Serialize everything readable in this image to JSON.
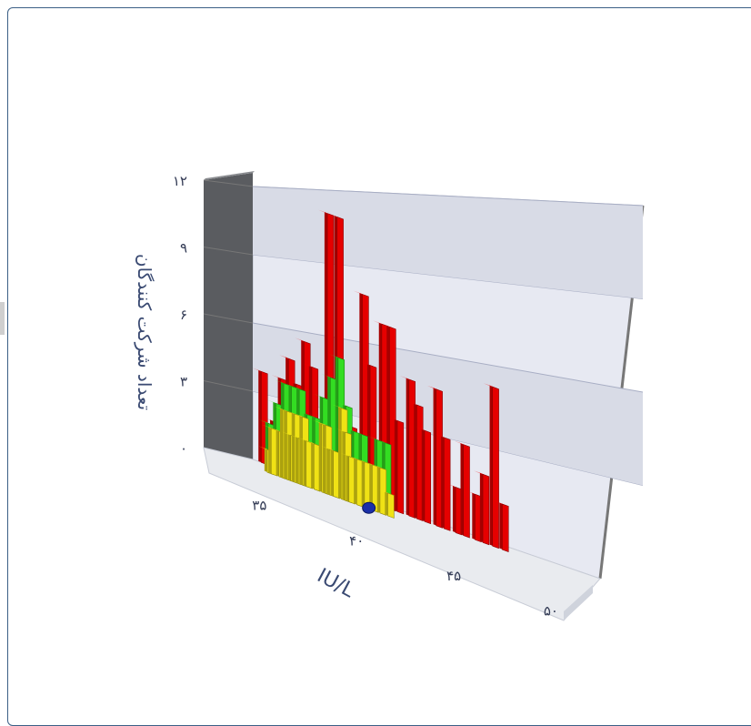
{
  "chart_data": {
    "type": "bar",
    "ylabel": "تعداد شرکت کنندگان",
    "xlabel": "IU/L",
    "yticks": [
      "۰",
      "۳",
      "۶",
      "۹",
      "۱۲"
    ],
    "ytick_values": [
      0,
      3,
      6,
      9,
      12
    ],
    "xticks": [
      "۳۵",
      "۴۰",
      "۴۵",
      "۵۰"
    ],
    "xtick_values": [
      35,
      40,
      45,
      50
    ],
    "ylim": [
      0,
      12
    ],
    "xlim": [
      34,
      51.5
    ],
    "grid": true,
    "series": [
      {
        "color": "#e60000",
        "values": [
          [
            34.6,
            4
          ],
          [
            35.2,
            2
          ],
          [
            35.6,
            4
          ],
          [
            36.0,
            5
          ],
          [
            36.4,
            4
          ],
          [
            36.8,
            6
          ],
          [
            37.2,
            5
          ],
          [
            38.0,
            12
          ],
          [
            38.5,
            12
          ],
          [
            39.2,
            3
          ],
          [
            39.8,
            9
          ],
          [
            40.2,
            6
          ],
          [
            40.8,
            8
          ],
          [
            41.2,
            8
          ],
          [
            41.6,
            4
          ],
          [
            42.2,
            6
          ],
          [
            42.6,
            5
          ],
          [
            43.0,
            4
          ],
          [
            43.6,
            6
          ],
          [
            44.0,
            4
          ],
          [
            44.6,
            2
          ],
          [
            45.0,
            4
          ],
          [
            45.6,
            2
          ],
          [
            46.0,
            3
          ],
          [
            46.5,
            7
          ],
          [
            47.0,
            2
          ]
        ]
      },
      {
        "color": "#33dd22",
        "values": [
          [
            34.8,
            2
          ],
          [
            35.2,
            3
          ],
          [
            35.6,
            4
          ],
          [
            36.0,
            4
          ],
          [
            36.4,
            4
          ],
          [
            36.8,
            3
          ],
          [
            37.2,
            3
          ],
          [
            37.6,
            4
          ],
          [
            38.0,
            5
          ],
          [
            38.4,
            6
          ],
          [
            38.8,
            4
          ],
          [
            39.2,
            3
          ],
          [
            39.6,
            3
          ],
          [
            40.4,
            3
          ],
          [
            40.8,
            3
          ]
        ]
      },
      {
        "color": "#f0e215",
        "values": [
          [
            34.6,
            1
          ],
          [
            34.8,
            2
          ],
          [
            35.2,
            2
          ],
          [
            35.4,
            3
          ],
          [
            35.6,
            3
          ],
          [
            35.8,
            2
          ],
          [
            36.0,
            3
          ],
          [
            36.2,
            2
          ],
          [
            36.4,
            3
          ],
          [
            36.6,
            2
          ],
          [
            37.0,
            2
          ],
          [
            37.4,
            3
          ],
          [
            37.6,
            3
          ],
          [
            37.8,
            2
          ],
          [
            38.0,
            2
          ],
          [
            38.4,
            4
          ],
          [
            38.6,
            3
          ],
          [
            38.8,
            2
          ],
          [
            39.2,
            2
          ],
          [
            39.6,
            2
          ],
          [
            40.0,
            2
          ],
          [
            40.4,
            2
          ],
          [
            40.8,
            1
          ]
        ]
      }
    ],
    "marker": {
      "x": 39.6,
      "color": "#1a2fa8"
    },
    "colors": {
      "wall_back": "#e7e9f2",
      "wall_side": "#5a5c60",
      "floor": "#e9ebef",
      "axis_text": "#3a4a72"
    }
  }
}
